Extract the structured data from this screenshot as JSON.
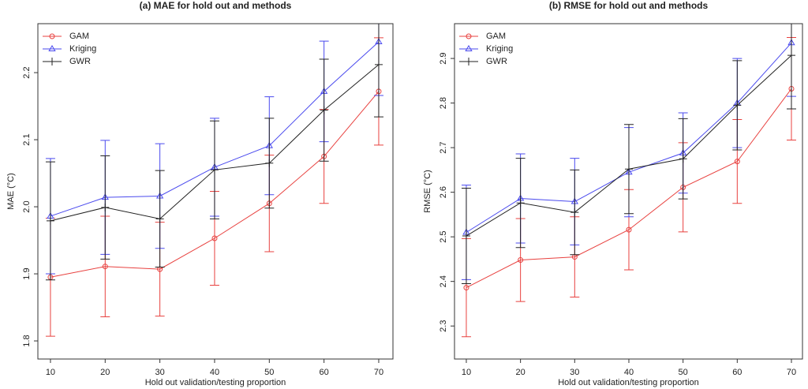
{
  "chart_data": [
    {
      "type": "line",
      "title": "(a) MAE for hold out and methods",
      "xlabel": "Hold out validation/testing proportion",
      "ylabel": "MAE (°C)",
      "x": [
        10,
        20,
        30,
        40,
        50,
        60,
        70
      ],
      "xlim": [
        7.7,
        72.6
      ],
      "xticks": [
        10,
        20,
        30,
        40,
        50,
        60,
        70
      ],
      "ylim": [
        1.773,
        2.273
      ],
      "yticks": [
        1.8,
        1.9,
        {
          "value": 2,
          "label": "2.0"
        },
        2.1,
        2.2
      ],
      "legend": "upper left",
      "series": [
        {
          "name": "GAM",
          "color": "#e8413f",
          "marker": "circle",
          "values": [
            1.895,
            1.911,
            1.907,
            1.953,
            2.005,
            2.075,
            2.172
          ],
          "errors": [
            0.088,
            0.075,
            0.07,
            0.07,
            0.072,
            0.07,
            0.08
          ]
        },
        {
          "name": "Kriging",
          "color": "#4a4aee",
          "marker": "triangle",
          "values": [
            1.986,
            2.014,
            2.016,
            2.059,
            2.091,
            2.172,
            2.246
          ],
          "errors": [
            0.086,
            0.085,
            0.078,
            0.073,
            0.073,
            0.075,
            0.08
          ]
        },
        {
          "name": "GWR",
          "color": "#222222",
          "marker": "plus",
          "values": [
            1.979,
            1.999,
            1.982,
            2.055,
            2.065,
            2.144,
            2.212
          ],
          "errors": [
            0.088,
            0.077,
            0.072,
            0.073,
            0.067,
            0.076,
            0.078
          ]
        }
      ]
    },
    {
      "type": "line",
      "title": "(b) RMSE for hold out and methods",
      "xlabel": "Hold out validation/testing proportion",
      "ylabel": "RMSE (°C)",
      "x": [
        10,
        20,
        30,
        40,
        50,
        60,
        70
      ],
      "xlim": [
        7.82,
        72.04
      ],
      "xticks": [
        10,
        20,
        30,
        40,
        50,
        60,
        70
      ],
      "ylim": [
        2.226,
        2.978
      ],
      "yticks": [
        2.3,
        2.4,
        2.5,
        2.6,
        2.7,
        2.8,
        2.9
      ],
      "legend": "upper left",
      "series": [
        {
          "name": "GAM",
          "color": "#e8413f",
          "marker": "circle",
          "values": [
            2.386,
            2.448,
            2.455,
            2.516,
            2.611,
            2.669,
            2.832
          ],
          "errors": [
            0.11,
            0.093,
            0.09,
            0.09,
            0.1,
            0.094,
            0.115
          ]
        },
        {
          "name": "Kriging",
          "color": "#4a4aee",
          "marker": "triangle",
          "values": [
            2.51,
            2.586,
            2.579,
            2.645,
            2.688,
            2.8,
            2.935
          ],
          "errors": [
            0.106,
            0.1,
            0.097,
            0.1,
            0.09,
            0.1,
            0.12
          ]
        },
        {
          "name": "GWR",
          "color": "#222222",
          "marker": "plus",
          "values": [
            2.502,
            2.576,
            2.555,
            2.652,
            2.675,
            2.795,
            2.907
          ],
          "errors": [
            0.107,
            0.1,
            0.095,
            0.1,
            0.09,
            0.1,
            0.12
          ]
        }
      ]
    }
  ]
}
